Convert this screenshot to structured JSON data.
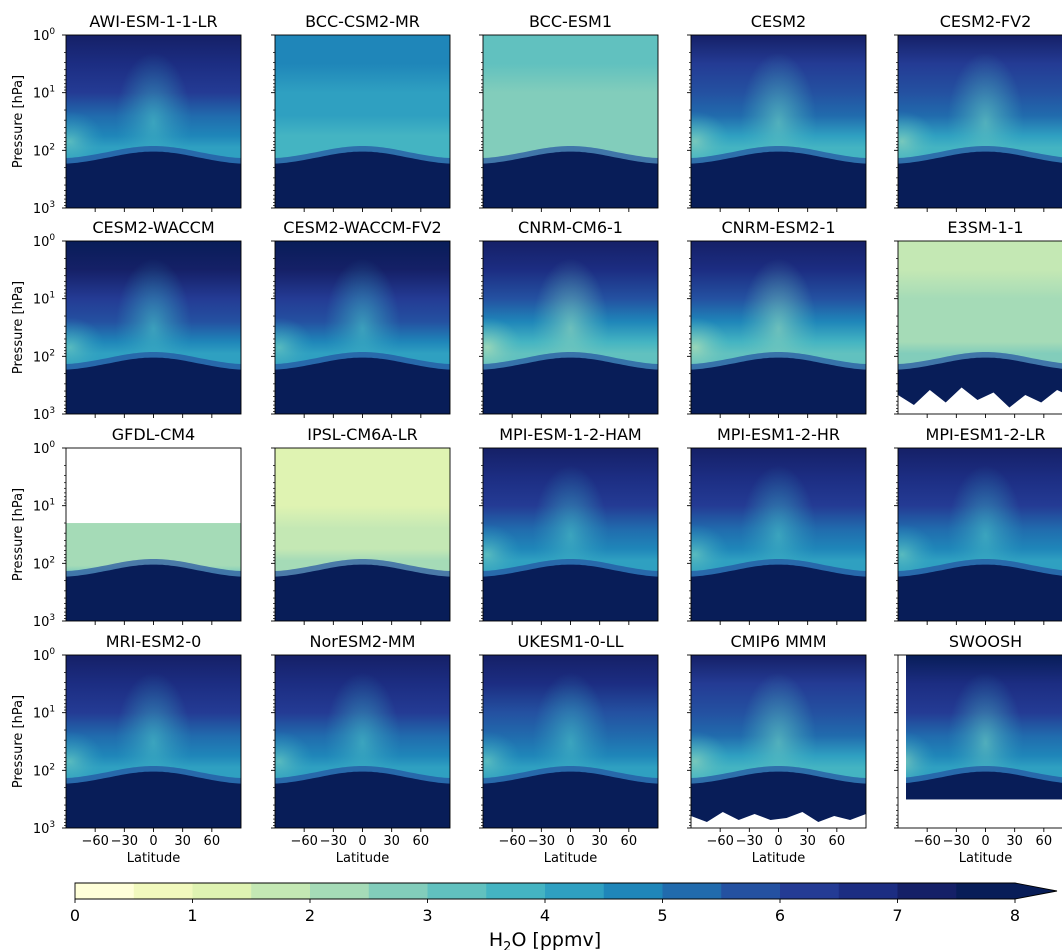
{
  "chart_data": {
    "type": "heatmap",
    "description_free": true,
    "panels": [
      {
        "title": "AWI-ESM-1-1-LR",
        "style": "std"
      },
      {
        "title": "BCC-CSM2-MR",
        "style": "bcccsm"
      },
      {
        "title": "BCC-ESM1",
        "style": "bccesm"
      },
      {
        "title": "CESM2",
        "style": "cesm"
      },
      {
        "title": "CESM2-FV2",
        "style": "cesm"
      },
      {
        "title": "CESM2-WACCM",
        "style": "waccm"
      },
      {
        "title": "CESM2-WACCM-FV2",
        "style": "waccm"
      },
      {
        "title": "CNRM-CM6-1",
        "style": "cnrm"
      },
      {
        "title": "CNRM-ESM2-1",
        "style": "cnrm"
      },
      {
        "title": "E3SM-1-1",
        "style": "e3sm"
      },
      {
        "title": "GFDL-CM4",
        "style": "gfdl"
      },
      {
        "title": "IPSL-CM6A-LR",
        "style": "ipsl"
      },
      {
        "title": "MPI-ESM-1-2-HAM",
        "style": "std"
      },
      {
        "title": "MPI-ESM1-2-HR",
        "style": "std"
      },
      {
        "title": "MPI-ESM1-2-LR",
        "style": "std"
      },
      {
        "title": "MRI-ESM2-0",
        "style": "std"
      },
      {
        "title": "NorESM2-MM",
        "style": "std"
      },
      {
        "title": "UKESM1-0-LL",
        "style": "ukesm"
      },
      {
        "title": "CMIP6 MMM",
        "style": "mmm"
      },
      {
        "title": "SWOOSH",
        "style": "swoosh"
      }
    ],
    "rows": 4,
    "cols": 5,
    "ylabel": "Pressure [hPa]",
    "xlabel": "Latitude",
    "y_ticks": [
      "10",
      "10",
      "10",
      "10"
    ],
    "y_tick_exponents": [
      "0",
      "1",
      "2",
      "3"
    ],
    "y_scale": "log",
    "ylim": [
      1000,
      1
    ],
    "xlim": [
      -90,
      90
    ],
    "x_ticks": [
      "−60",
      "−30",
      "0",
      "30",
      "60"
    ],
    "x_tick_values": [
      -60,
      -30,
      0,
      30,
      60
    ],
    "colorbar": {
      "label_main": "H",
      "label_sub": "2",
      "label_rest": "O [ppmv]",
      "range": [
        0,
        8
      ],
      "step": 0.5,
      "extend": "max",
      "ticks": [
        "0",
        "1",
        "2",
        "3",
        "4",
        "5",
        "6",
        "7",
        "8"
      ],
      "tick_values": [
        0,
        1,
        2,
        3,
        4,
        5,
        6,
        7,
        8
      ],
      "colors": [
        "#ffffd9",
        "#f1f9bd",
        "#dff3b2",
        "#c4e8b4",
        "#a5dbb7",
        "#82cdbb",
        "#61c1bf",
        "#44b4c2",
        "#2fa0c1",
        "#1f86b9",
        "#216bad",
        "#2451a1",
        "#243b94",
        "#1c2d82",
        "#152067",
        "#081d58"
      ]
    }
  }
}
